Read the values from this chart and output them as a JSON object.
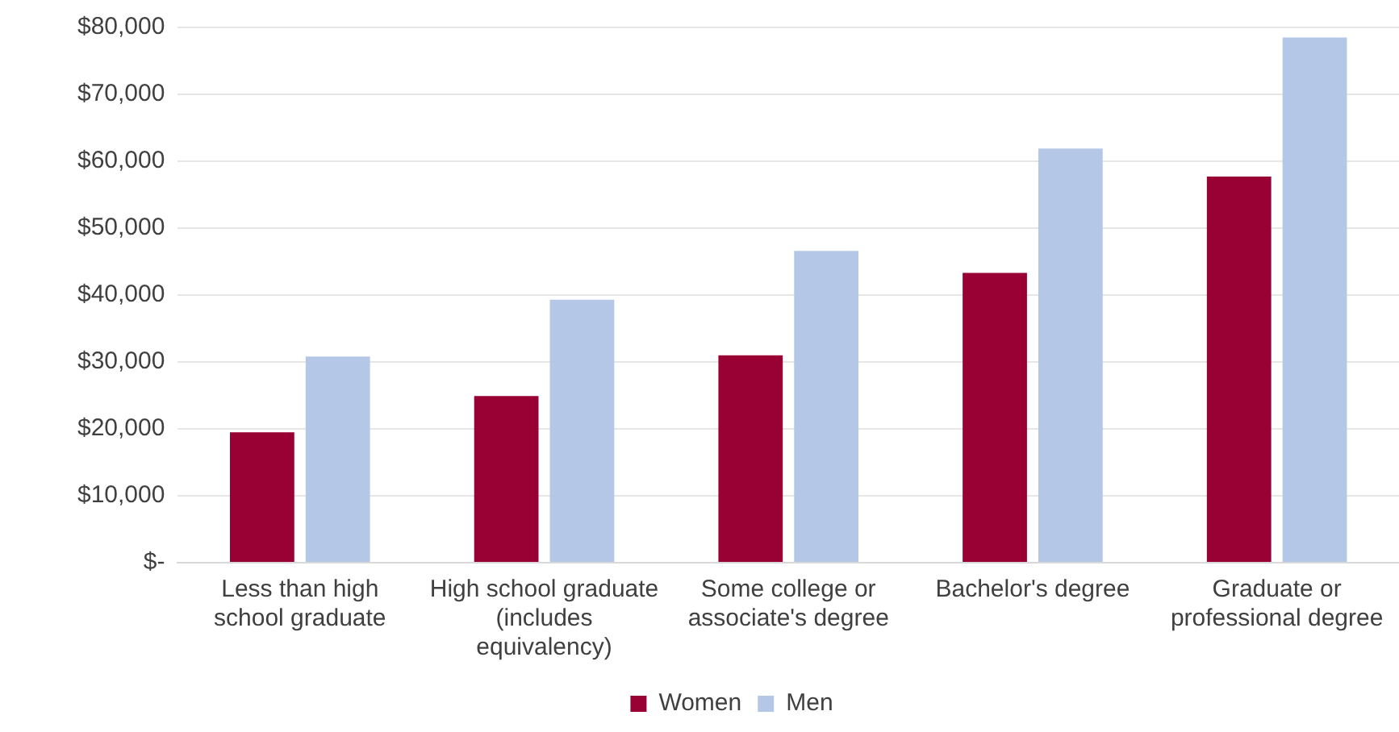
{
  "chart_data": {
    "type": "bar",
    "categories": [
      "Less than high school graduate",
      "High school graduate (includes equivalency)",
      "Some college or associate's degree",
      "Bachelor's degree",
      "Graduate or professional degree"
    ],
    "series": [
      {
        "name": "Women",
        "color": "#990033",
        "values": [
          19500,
          24900,
          31000,
          43300,
          57700
        ]
      },
      {
        "name": "Men",
        "color": "#b4c7e7",
        "values": [
          30800,
          39300,
          46600,
          61900,
          78500
        ]
      }
    ],
    "ylim": [
      0,
      80000
    ],
    "yticks": [
      {
        "value": 0,
        "label": "$-"
      },
      {
        "value": 10000,
        "label": "$10,000"
      },
      {
        "value": 20000,
        "label": "$20,000"
      },
      {
        "value": 30000,
        "label": "$30,000"
      },
      {
        "value": 40000,
        "label": "$40,000"
      },
      {
        "value": 50000,
        "label": "$50,000"
      },
      {
        "value": 60000,
        "label": "$60,000"
      },
      {
        "value": 70000,
        "label": "$70,000"
      },
      {
        "value": 80000,
        "label": "$80,000"
      }
    ],
    "grid": "y",
    "legend": "bottom"
  }
}
